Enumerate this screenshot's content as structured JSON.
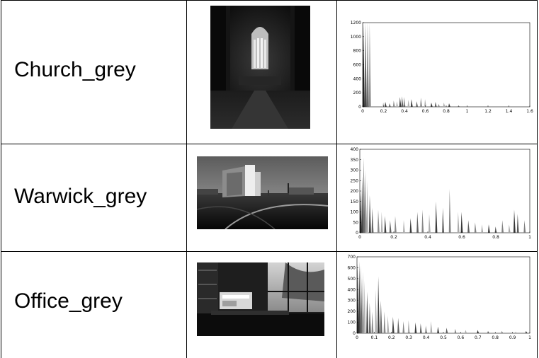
{
  "rows": [
    {
      "name": "Church_grey"
    },
    {
      "name": "Warwick_grey"
    },
    {
      "name": "Office_grey"
    }
  ],
  "chart_data": [
    {
      "type": "bar",
      "xlim": [
        0,
        1.6
      ],
      "ylim": [
        0,
        1200
      ],
      "xticks": [
        "0",
        "0.2",
        "0.4",
        "0.6",
        "0.8",
        "1",
        "1.2",
        "1.4",
        "1.6"
      ],
      "yticks": [
        "0",
        "200",
        "400",
        "600",
        "800",
        "1000",
        "1200"
      ],
      "x": [
        0.01,
        0.03,
        0.05,
        0.07,
        0.2,
        0.22,
        0.26,
        0.3,
        0.33,
        0.36,
        0.38,
        0.4,
        0.44,
        0.47,
        0.52,
        0.56,
        0.6,
        0.66,
        0.7,
        0.73,
        0.78,
        0.83,
        0.92
      ],
      "values": [
        1200,
        1200,
        1200,
        1200,
        60,
        70,
        50,
        90,
        80,
        140,
        150,
        140,
        100,
        110,
        80,
        130,
        110,
        60,
        70,
        40,
        60,
        50,
        20
      ]
    },
    {
      "type": "bar",
      "xlim": [
        0,
        1
      ],
      "ylim": [
        0,
        400
      ],
      "xticks": [
        "0",
        "0.2",
        "0.4",
        "0.6",
        "0.8",
        "1"
      ],
      "yticks": [
        "0",
        "50",
        "100",
        "150",
        "200",
        "250",
        "300",
        "350",
        "400"
      ],
      "x": [
        0.005,
        0.015,
        0.025,
        0.035,
        0.045,
        0.06,
        0.075,
        0.11,
        0.13,
        0.15,
        0.18,
        0.21,
        0.26,
        0.3,
        0.34,
        0.37,
        0.41,
        0.45,
        0.49,
        0.53,
        0.58,
        0.6,
        0.64,
        0.68,
        0.72,
        0.76,
        0.8,
        0.84,
        0.88,
        0.91,
        0.93,
        0.97
      ],
      "values": [
        200,
        270,
        360,
        300,
        250,
        180,
        120,
        110,
        100,
        80,
        60,
        80,
        60,
        70,
        100,
        110,
        90,
        150,
        120,
        210,
        100,
        100,
        60,
        50,
        40,
        40,
        30,
        60,
        40,
        110,
        90,
        60
      ]
    },
    {
      "type": "bar",
      "xlim": [
        0,
        1
      ],
      "ylim": [
        0,
        700
      ],
      "xticks": [
        "0",
        "0.1",
        "0.2",
        "0.3",
        "0.4",
        "0.5",
        "0.6",
        "0.7",
        "0.8",
        "0.9",
        "1"
      ],
      "yticks": [
        "0",
        "100",
        "200",
        "300",
        "400",
        "500",
        "600",
        "700"
      ],
      "x": [
        0.005,
        0.015,
        0.025,
        0.035,
        0.045,
        0.06,
        0.075,
        0.09,
        0.11,
        0.125,
        0.14,
        0.16,
        0.18,
        0.21,
        0.24,
        0.27,
        0.3,
        0.34,
        0.37,
        0.4,
        0.43,
        0.47,
        0.52,
        0.57,
        0.63,
        0.7,
        0.76,
        0.84,
        0.92,
        0.98
      ],
      "values": [
        640,
        660,
        620,
        560,
        480,
        380,
        280,
        200,
        400,
        520,
        300,
        200,
        160,
        150,
        140,
        110,
        120,
        100,
        90,
        70,
        110,
        60,
        50,
        40,
        30,
        30,
        20,
        20,
        15,
        20
      ]
    }
  ]
}
